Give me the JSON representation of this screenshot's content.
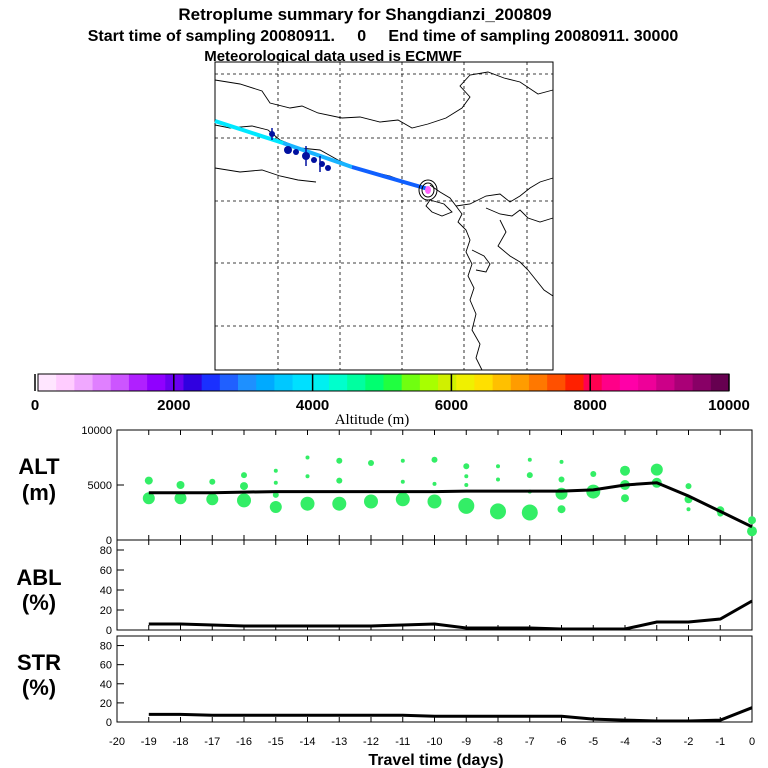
{
  "header": {
    "title": "Retroplume summary for Shangdianzi_200809",
    "sampling_line": "Start time of sampling 20080911.     0     End time of sampling 20080911. 30000",
    "met_line": "Meteorological data used is ECMWF"
  },
  "colorbar": {
    "label": "Altitude (m)",
    "ticks": [
      "0",
      "2000",
      "4000",
      "6000",
      "8000",
      "10000"
    ],
    "colors": [
      "#ffe6ff",
      "#ffccff",
      "#f0a8ff",
      "#e080ff",
      "#cc55ff",
      "#b020ff",
      "#9000ff",
      "#6a00f0",
      "#3000e0",
      "#1a30ff",
      "#2060ff",
      "#1e90ff",
      "#00aaff",
      "#00c8ff",
      "#00e0ff",
      "#00f0f0",
      "#00ffcc",
      "#00ffa0",
      "#00ff70",
      "#20ff40",
      "#70ff10",
      "#a8ff00",
      "#d0f000",
      "#f0f000",
      "#ffe000",
      "#ffc000",
      "#ff9c00",
      "#ff7800",
      "#ff5000",
      "#ff2000",
      "#ff0050",
      "#ff0088",
      "#ff00a8",
      "#ee0099",
      "#cc0088",
      "#aa0077",
      "#880066",
      "#660050"
    ]
  },
  "panel_labels": {
    "alt": [
      "ALT",
      "(m)"
    ],
    "abl": [
      "ABL",
      "(%)"
    ],
    "str": [
      "STR",
      "(%)"
    ]
  },
  "map": {
    "trajectory_colors": {
      "start": "#00e8ff",
      "end": "#1060ff"
    },
    "release_marker_color": "#ff66ff"
  },
  "chart_data": [
    {
      "type": "scatter+line",
      "panel": "ALT",
      "ylabel": "ALT (m)",
      "ylim": [
        0,
        10000
      ],
      "yticks": [
        "10000",
        "5000",
        "0"
      ],
      "line_color": "#000000",
      "dot_color": "#33ee66",
      "line": {
        "x": [
          -19,
          -18,
          -17,
          -16,
          -15,
          -14,
          -13,
          -12,
          -11,
          -10,
          -9,
          -8,
          -7,
          -6,
          -5,
          -4,
          -3,
          -2,
          -1,
          0
        ],
        "y": [
          4300,
          4300,
          4300,
          4350,
          4400,
          4400,
          4400,
          4400,
          4400,
          4400,
          4450,
          4450,
          4450,
          4450,
          4550,
          5000,
          5200,
          4000,
          2600,
          1200
        ]
      },
      "dots": [
        {
          "x": -19,
          "y": 5400,
          "s": 4
        },
        {
          "x": -19,
          "y": 3800,
          "s": 6
        },
        {
          "x": -18,
          "y": 5000,
          "s": 4
        },
        {
          "x": -18,
          "y": 3800,
          "s": 6
        },
        {
          "x": -17,
          "y": 5300,
          "s": 3
        },
        {
          "x": -17,
          "y": 3700,
          "s": 6
        },
        {
          "x": -16,
          "y": 5900,
          "s": 3
        },
        {
          "x": -16,
          "y": 4900,
          "s": 4
        },
        {
          "x": -16,
          "y": 3600,
          "s": 7
        },
        {
          "x": -15,
          "y": 6300,
          "s": 2
        },
        {
          "x": -15,
          "y": 5200,
          "s": 2
        },
        {
          "x": -15,
          "y": 4100,
          "s": 3
        },
        {
          "x": -15,
          "y": 3000,
          "s": 6
        },
        {
          "x": -14,
          "y": 7500,
          "s": 2
        },
        {
          "x": -14,
          "y": 5800,
          "s": 2
        },
        {
          "x": -14,
          "y": 3300,
          "s": 7
        },
        {
          "x": -13,
          "y": 7200,
          "s": 3
        },
        {
          "x": -13,
          "y": 5400,
          "s": 3
        },
        {
          "x": -13,
          "y": 3300,
          "s": 7
        },
        {
          "x": -12,
          "y": 7000,
          "s": 3
        },
        {
          "x": -12,
          "y": 3500,
          "s": 7
        },
        {
          "x": -11,
          "y": 7200,
          "s": 2
        },
        {
          "x": -11,
          "y": 5300,
          "s": 2
        },
        {
          "x": -11,
          "y": 3700,
          "s": 7
        },
        {
          "x": -10,
          "y": 7300,
          "s": 3
        },
        {
          "x": -10,
          "y": 5100,
          "s": 2
        },
        {
          "x": -10,
          "y": 3500,
          "s": 7
        },
        {
          "x": -9,
          "y": 6700,
          "s": 3
        },
        {
          "x": -9,
          "y": 5800,
          "s": 2
        },
        {
          "x": -9,
          "y": 5000,
          "s": 2
        },
        {
          "x": -9,
          "y": 3100,
          "s": 8
        },
        {
          "x": -8,
          "y": 6700,
          "s": 2
        },
        {
          "x": -8,
          "y": 5500,
          "s": 2
        },
        {
          "x": -8,
          "y": 2600,
          "s": 8
        },
        {
          "x": -7,
          "y": 7300,
          "s": 2
        },
        {
          "x": -7,
          "y": 5900,
          "s": 3
        },
        {
          "x": -7,
          "y": 4400,
          "s": 2
        },
        {
          "x": -7,
          "y": 2500,
          "s": 8
        },
        {
          "x": -6,
          "y": 7100,
          "s": 2
        },
        {
          "x": -6,
          "y": 5500,
          "s": 3
        },
        {
          "x": -6,
          "y": 4200,
          "s": 6
        },
        {
          "x": -6,
          "y": 2800,
          "s": 4
        },
        {
          "x": -5,
          "y": 6000,
          "s": 3
        },
        {
          "x": -5,
          "y": 4400,
          "s": 7
        },
        {
          "x": -4,
          "y": 6300,
          "s": 5
        },
        {
          "x": -4,
          "y": 5000,
          "s": 5
        },
        {
          "x": -4,
          "y": 3800,
          "s": 4
        },
        {
          "x": -3,
          "y": 6400,
          "s": 6
        },
        {
          "x": -3,
          "y": 5200,
          "s": 5
        },
        {
          "x": -2,
          "y": 4900,
          "s": 3
        },
        {
          "x": -2,
          "y": 3700,
          "s": 4
        },
        {
          "x": -2,
          "y": 2800,
          "s": 2
        },
        {
          "x": -1,
          "y": 2700,
          "s": 4
        },
        {
          "x": -1,
          "y": 2400,
          "s": 3
        },
        {
          "x": 0,
          "y": 1800,
          "s": 4
        },
        {
          "x": 0,
          "y": 800,
          "s": 5
        }
      ]
    },
    {
      "type": "line",
      "panel": "ABL",
      "ylabel": "ABL (%)",
      "ylim": [
        0,
        90
      ],
      "yticks": [
        "80",
        "60",
        "40",
        "20",
        "0"
      ],
      "x": [
        -19,
        -18,
        -17,
        -16,
        -15,
        -14,
        -13,
        -12,
        -11,
        -10,
        -9,
        -8,
        -7,
        -6,
        -5,
        -4,
        -3,
        -2,
        -1,
        0
      ],
      "values": [
        6,
        6,
        5,
        4,
        4,
        4,
        4,
        4,
        5,
        6,
        2,
        2,
        2,
        1,
        1,
        1,
        8,
        8,
        11,
        29
      ]
    },
    {
      "type": "line",
      "panel": "STR",
      "ylabel": "STR (%)",
      "ylim": [
        0,
        90
      ],
      "yticks": [
        "80",
        "60",
        "40",
        "20",
        "0"
      ],
      "xlabel": "Travel time (days)",
      "xlim": [
        -20,
        0
      ],
      "xticks": [
        "-20",
        "-19",
        "-18",
        "-17",
        "-16",
        "-15",
        "-14",
        "-13",
        "-12",
        "-11",
        "-10",
        "-9",
        "-8",
        "-7",
        "-6",
        "-5",
        "-4",
        "-3",
        "-2",
        "-1",
        "0"
      ],
      "x": [
        -19,
        -18,
        -17,
        -16,
        -15,
        -14,
        -13,
        -12,
        -11,
        -10,
        -9,
        -8,
        -7,
        -6,
        -5,
        -4,
        -3,
        -2,
        -1,
        0
      ],
      "values": [
        8,
        8,
        7,
        7,
        7,
        7,
        7,
        7,
        7,
        6,
        6,
        6,
        6,
        6,
        3,
        2,
        1,
        1,
        2,
        15
      ]
    }
  ]
}
